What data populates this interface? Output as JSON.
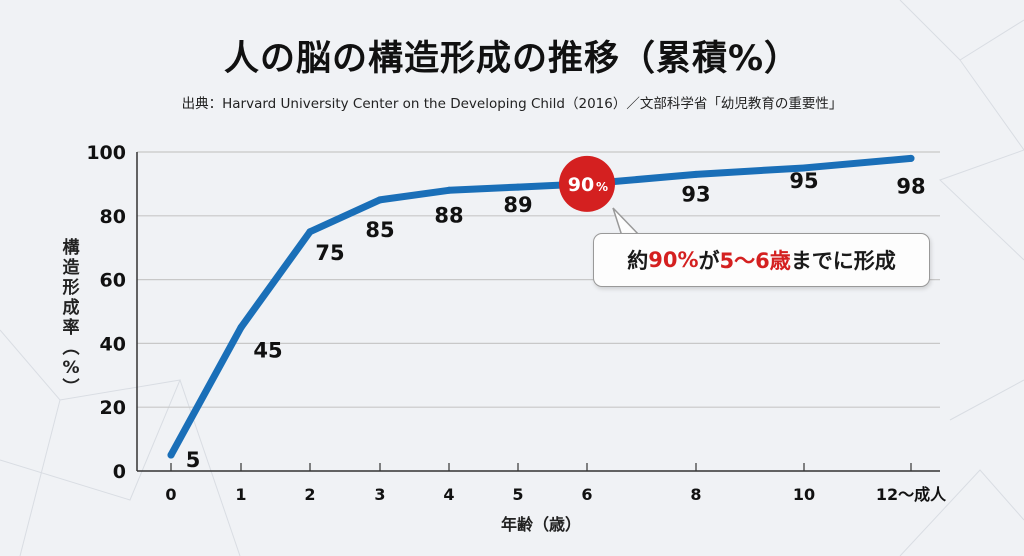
{
  "title": "人の脳の構造形成の推移（累積%）",
  "source": "出典：Harvard University Center on the Developing Child（2016）／文部科学省「幼児教育の重要性」",
  "callout": {
    "parts": [
      {
        "text": "約",
        "highlight": false
      },
      {
        "text": "90%",
        "highlight": true
      },
      {
        "text": "が",
        "highlight": false
      },
      {
        "text": "5〜6歳",
        "highlight": true
      },
      {
        "text": "までに形成",
        "highlight": false
      }
    ]
  },
  "badge": {
    "text": "90",
    "unit": "%",
    "at_x": 6,
    "value": 90
  },
  "colors": {
    "line": "#1a6fb8",
    "badge": "#d42020",
    "highlight": "#d42020",
    "grid": "#c8c8c8",
    "axis": "#333333",
    "text": "#111111"
  },
  "chart_data": {
    "type": "line",
    "title": "人の脳の構造形成の推移（累積%）",
    "xlabel": "年齢（歳）",
    "ylabel": "構造形成率（%）",
    "ylim": [
      0,
      100
    ],
    "yticks": [
      0,
      20,
      40,
      60,
      80,
      100
    ],
    "xticks": [
      "0",
      "1",
      "2",
      "3",
      "4",
      "5",
      "6",
      "8",
      "10",
      "12〜成人"
    ],
    "grid": true,
    "series": [
      {
        "name": "構造形成率",
        "x": [
          "0",
          "1",
          "2",
          "3",
          "4",
          "5",
          "6",
          "8",
          "10",
          "12〜成人"
        ],
        "values": [
          5,
          45,
          75,
          85,
          88,
          89,
          90,
          93,
          95,
          98
        ],
        "labels": [
          "5",
          "45",
          "75",
          "85",
          "88",
          "89",
          "",
          "93",
          "95",
          "98"
        ]
      }
    ]
  }
}
